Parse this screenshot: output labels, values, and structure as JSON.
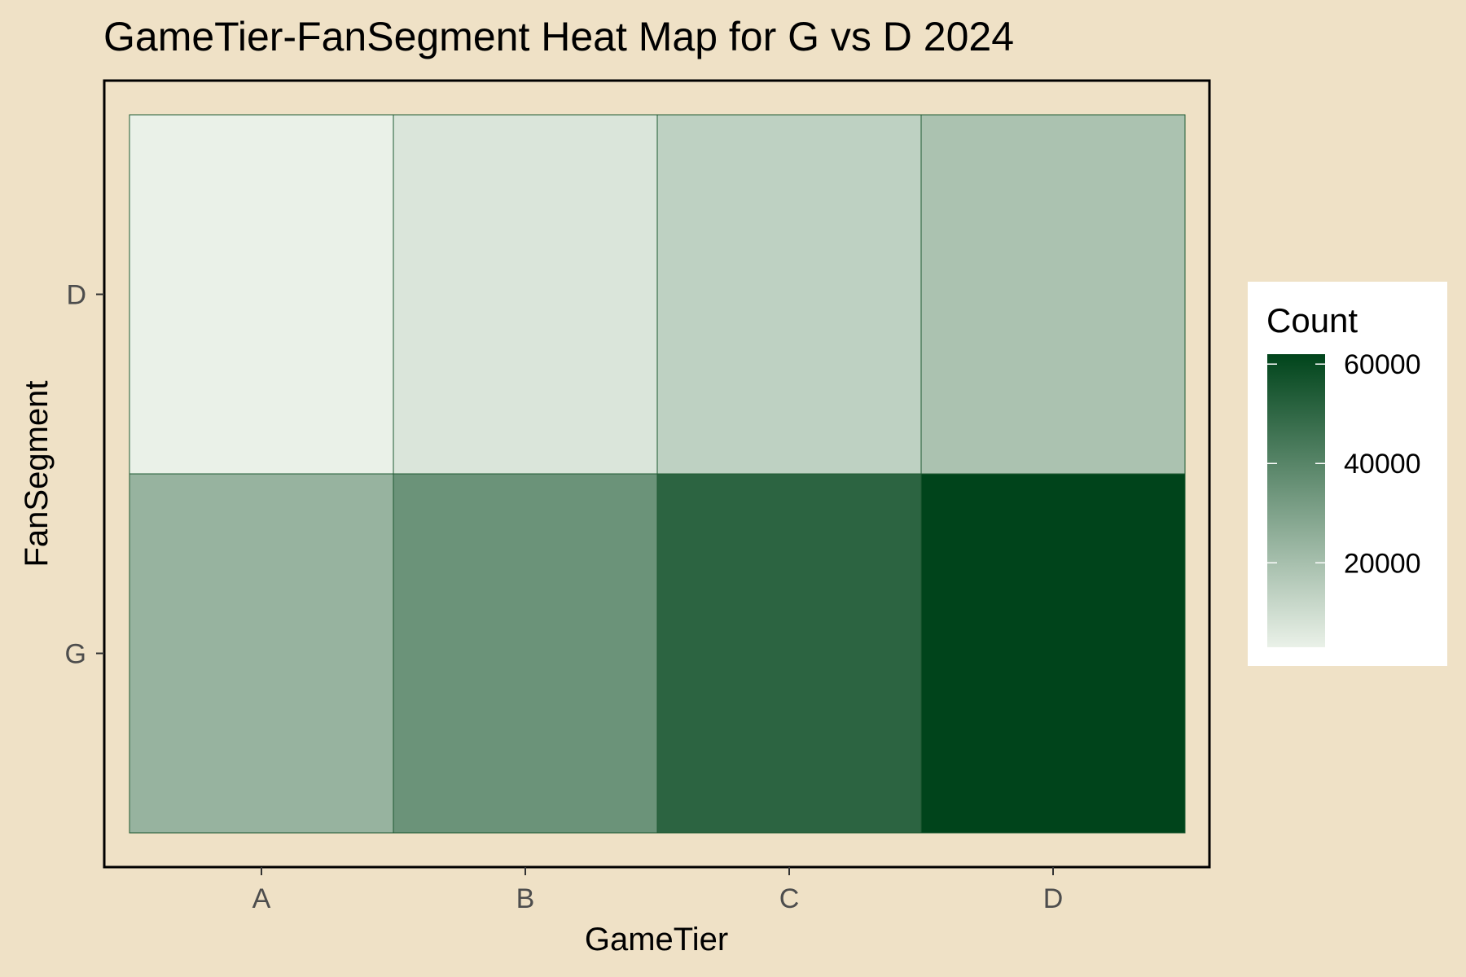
{
  "chart_data": {
    "type": "heatmap",
    "title": "GameTier-FanSegment Heat Map for G vs D 2024",
    "xlabel": "GameTier",
    "ylabel": "FanSegment",
    "x_categories": [
      "A",
      "B",
      "C",
      "D"
    ],
    "y_categories": [
      "D",
      "G"
    ],
    "values": [
      {
        "x": "A",
        "y": "D",
        "value": 3000
      },
      {
        "x": "B",
        "y": "D",
        "value": 7000
      },
      {
        "x": "C",
        "y": "D",
        "value": 14000
      },
      {
        "x": "D",
        "y": "D",
        "value": 19000
      },
      {
        "x": "A",
        "y": "G",
        "value": 24000
      },
      {
        "x": "B",
        "y": "G",
        "value": 35000
      },
      {
        "x": "C",
        "y": "G",
        "value": 51000
      },
      {
        "x": "D",
        "y": "G",
        "value": 62000
      }
    ],
    "legend": {
      "title": "Count",
      "ticks": [
        20000,
        40000,
        60000
      ],
      "min": 3000,
      "max": 62000,
      "low_color": "#eaf1e8",
      "high_color": "#00441b",
      "placement": "right"
    },
    "grid": false,
    "colors": {
      "background": "#efe1c6",
      "tile_border": "#1f5a33",
      "legend_background": "#ffffff"
    }
  }
}
